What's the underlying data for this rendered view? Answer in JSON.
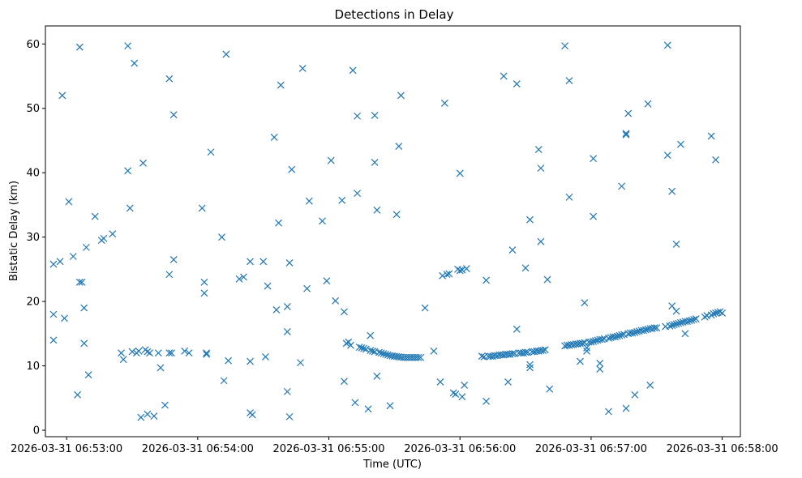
{
  "chart_data": {
    "type": "scatter",
    "title": "Detections in Delay",
    "xlabel": "Time (UTC)",
    "ylabel": "Bistatic Delay (km)",
    "marker": "x",
    "color": "#1f77b4",
    "x_unit": "seconds after 2026-03-31 06:53:00",
    "xlim": [
      -9.7,
      308.3
    ],
    "ylim": [
      -1.0,
      62.8
    ],
    "x_ticks": [
      {
        "value": 0,
        "label": "2026-03-31 06:53:00"
      },
      {
        "value": 60,
        "label": "2026-03-31 06:54:00"
      },
      {
        "value": 120,
        "label": "2026-03-31 06:55:00"
      },
      {
        "value": 180,
        "label": "2026-03-31 06:56:00"
      },
      {
        "value": 240,
        "label": "2026-03-31 06:57:00"
      },
      {
        "value": 300,
        "label": "2026-03-31 06:58:00"
      }
    ],
    "y_ticks": [
      0,
      10,
      20,
      30,
      40,
      50,
      60
    ],
    "points": [
      [
        -6,
        25.8
      ],
      [
        -6,
        18.0
      ],
      [
        -6,
        14.0
      ],
      [
        -3,
        26.2
      ],
      [
        -2,
        52.0
      ],
      [
        -1,
        17.4
      ],
      [
        1,
        35.5
      ],
      [
        3,
        27.0
      ],
      [
        5,
        5.5
      ],
      [
        6,
        23.0
      ],
      [
        6,
        59.5
      ],
      [
        7,
        23.0
      ],
      [
        8,
        19.0
      ],
      [
        8,
        13.5
      ],
      [
        9,
        28.4
      ],
      [
        10,
        8.6
      ],
      [
        13,
        33.2
      ],
      [
        16,
        29.5
      ],
      [
        17,
        29.8
      ],
      [
        21,
        30.5
      ],
      [
        25,
        12.0
      ],
      [
        26,
        11.0
      ],
      [
        28,
        59.7
      ],
      [
        28,
        40.3
      ],
      [
        29,
        34.5
      ],
      [
        30,
        12.2
      ],
      [
        31,
        57.0
      ],
      [
        32,
        12.0
      ],
      [
        33,
        12.3
      ],
      [
        34,
        2.0
      ],
      [
        35,
        41.5
      ],
      [
        36,
        12.5
      ],
      [
        37,
        2.5
      ],
      [
        37,
        12.2
      ],
      [
        38,
        12.0
      ],
      [
        40,
        2.2
      ],
      [
        42,
        12.0
      ],
      [
        43,
        9.7
      ],
      [
        45,
        3.9
      ],
      [
        47,
        12.0
      ],
      [
        47,
        24.2
      ],
      [
        47,
        54.6
      ],
      [
        48,
        12.0
      ],
      [
        49,
        26.5
      ],
      [
        49,
        49.0
      ],
      [
        54,
        12.3
      ],
      [
        56,
        12.0
      ],
      [
        62,
        34.5
      ],
      [
        63,
        23.0
      ],
      [
        63,
        21.3
      ],
      [
        64,
        12.0
      ],
      [
        64,
        11.8
      ],
      [
        66,
        43.2
      ],
      [
        71,
        30.0
      ],
      [
        72,
        7.7
      ],
      [
        73,
        58.4
      ],
      [
        74,
        10.8
      ],
      [
        79,
        23.5
      ],
      [
        81,
        23.8
      ],
      [
        84,
        26.2
      ],
      [
        84,
        10.7
      ],
      [
        84,
        2.7
      ],
      [
        85,
        2.4
      ],
      [
        90,
        26.2
      ],
      [
        91,
        11.4
      ],
      [
        92,
        22.4
      ],
      [
        95,
        45.5
      ],
      [
        96,
        18.7
      ],
      [
        97,
        32.2
      ],
      [
        98,
        53.6
      ],
      [
        101,
        19.2
      ],
      [
        101,
        15.3
      ],
      [
        101,
        6.0
      ],
      [
        102,
        2.1
      ],
      [
        102,
        26.0
      ],
      [
        103,
        40.5
      ],
      [
        107,
        10.5
      ],
      [
        108,
        56.2
      ],
      [
        110,
        22.0
      ],
      [
        111,
        35.6
      ],
      [
        117,
        32.5
      ],
      [
        119,
        23.2
      ],
      [
        121,
        41.9
      ],
      [
        123,
        20.1
      ],
      [
        126,
        35.7
      ],
      [
        127,
        18.4
      ],
      [
        127,
        7.6
      ],
      [
        128,
        13.5
      ],
      [
        129,
        13.7
      ],
      [
        130,
        13.2
      ],
      [
        131,
        55.9
      ],
      [
        132,
        4.3
      ],
      [
        133,
        48.8
      ],
      [
        133,
        36.8
      ],
      [
        134,
        12.9
      ],
      [
        135,
        12.8
      ],
      [
        136,
        12.7
      ],
      [
        137,
        12.6
      ],
      [
        138,
        3.3
      ],
      [
        139,
        12.4
      ],
      [
        139,
        14.7
      ],
      [
        140,
        12.3
      ],
      [
        141,
        48.9
      ],
      [
        141,
        41.6
      ],
      [
        141,
        12.2
      ],
      [
        142,
        34.2
      ],
      [
        142,
        8.4
      ],
      [
        143,
        12.1
      ],
      [
        144,
        12.0
      ],
      [
        145,
        11.9
      ],
      [
        146,
        11.8
      ],
      [
        147,
        11.7
      ],
      [
        148,
        11.6
      ],
      [
        148,
        3.8
      ],
      [
        149,
        11.55
      ],
      [
        150,
        11.5
      ],
      [
        151,
        11.45
      ],
      [
        151,
        33.5
      ],
      [
        152,
        44.1
      ],
      [
        152,
        11.4
      ],
      [
        153,
        11.35
      ],
      [
        153,
        52.0
      ],
      [
        154,
        11.3
      ],
      [
        155,
        11.3
      ],
      [
        156,
        11.3
      ],
      [
        157,
        11.3
      ],
      [
        158,
        11.3
      ],
      [
        159,
        11.3
      ],
      [
        160,
        11.3
      ],
      [
        161,
        11.3
      ],
      [
        162,
        11.3
      ],
      [
        164,
        19.0
      ],
      [
        168,
        12.3
      ],
      [
        171,
        7.5
      ],
      [
        172,
        24.0
      ],
      [
        173,
        50.8
      ],
      [
        174,
        24.2
      ],
      [
        175,
        24.3
      ],
      [
        177,
        5.8
      ],
      [
        178,
        5.6
      ],
      [
        179,
        25.0
      ],
      [
        180,
        39.9
      ],
      [
        180,
        24.8
      ],
      [
        181,
        5.2
      ],
      [
        181,
        24.9
      ],
      [
        182,
        7.0
      ],
      [
        183,
        25.1
      ],
      [
        190,
        11.5
      ],
      [
        191,
        11.4
      ],
      [
        192,
        4.5
      ],
      [
        192,
        23.3
      ],
      [
        193,
        11.5
      ],
      [
        194,
        11.5
      ],
      [
        195,
        11.5
      ],
      [
        196,
        11.6
      ],
      [
        197,
        11.6
      ],
      [
        198,
        11.7
      ],
      [
        199,
        11.7
      ],
      [
        200,
        55.0
      ],
      [
        200,
        11.7
      ],
      [
        201,
        11.8
      ],
      [
        202,
        7.5
      ],
      [
        202,
        11.8
      ],
      [
        203,
        11.8
      ],
      [
        204,
        28.0
      ],
      [
        204,
        11.9
      ],
      [
        205,
        11.9
      ],
      [
        206,
        15.7
      ],
      [
        206,
        53.8
      ],
      [
        207,
        12.0
      ],
      [
        208,
        12.0
      ],
      [
        209,
        12.0
      ],
      [
        210,
        25.2
      ],
      [
        210,
        12.1
      ],
      [
        211,
        12.1
      ],
      [
        212,
        32.7
      ],
      [
        212,
        10.2
      ],
      [
        212,
        9.7
      ],
      [
        213,
        12.2
      ],
      [
        214,
        12.2
      ],
      [
        215,
        12.3
      ],
      [
        216,
        43.6
      ],
      [
        216,
        12.3
      ],
      [
        217,
        29.3
      ],
      [
        217,
        40.7
      ],
      [
        217,
        12.4
      ],
      [
        218,
        12.4
      ],
      [
        219,
        12.5
      ],
      [
        220,
        23.4
      ],
      [
        221,
        6.4
      ],
      [
        228,
        13.1
      ],
      [
        228,
        59.7
      ],
      [
        229,
        13.2
      ],
      [
        230,
        54.3
      ],
      [
        230,
        36.2
      ],
      [
        230,
        13.2
      ],
      [
        231,
        13.3
      ],
      [
        232,
        13.3
      ],
      [
        233,
        13.4
      ],
      [
        234,
        13.4
      ],
      [
        235,
        10.7
      ],
      [
        235,
        13.5
      ],
      [
        236,
        13.5
      ],
      [
        237,
        19.8
      ],
      [
        237,
        13.6
      ],
      [
        238,
        12.8
      ],
      [
        238,
        12.3
      ],
      [
        239,
        13.7
      ],
      [
        240,
        13.7
      ],
      [
        241,
        42.2
      ],
      [
        241,
        33.2
      ],
      [
        241,
        13.8
      ],
      [
        242,
        13.9
      ],
      [
        243,
        14.0
      ],
      [
        244,
        9.5
      ],
      [
        244,
        10.4
      ],
      [
        244,
        14.1
      ],
      [
        245,
        14.1
      ],
      [
        246,
        14.2
      ],
      [
        248,
        2.9
      ],
      [
        248,
        14.3
      ],
      [
        249,
        14.4
      ],
      [
        250,
        14.5
      ],
      [
        251,
        14.5
      ],
      [
        252,
        14.6
      ],
      [
        253,
        14.7
      ],
      [
        254,
        37.9
      ],
      [
        254,
        14.8
      ],
      [
        255,
        14.9
      ],
      [
        256,
        3.4
      ],
      [
        256,
        45.9
      ],
      [
        256,
        46.1
      ],
      [
        257,
        15.0
      ],
      [
        257,
        49.2
      ],
      [
        258,
        15.1
      ],
      [
        259,
        15.1
      ],
      [
        260,
        5.5
      ],
      [
        260,
        15.2
      ],
      [
        261,
        15.3
      ],
      [
        262,
        15.4
      ],
      [
        263,
        15.5
      ],
      [
        264,
        15.5
      ],
      [
        265,
        15.6
      ],
      [
        266,
        50.7
      ],
      [
        266,
        15.7
      ],
      [
        267,
        7.0
      ],
      [
        267,
        15.8
      ],
      [
        268,
        15.8
      ],
      [
        269,
        15.9
      ],
      [
        270,
        15.9
      ],
      [
        274,
        16.1
      ],
      [
        275,
        42.7
      ],
      [
        275,
        59.8
      ],
      [
        276,
        16.2
      ],
      [
        277,
        19.3
      ],
      [
        277,
        37.1
      ],
      [
        277,
        16.3
      ],
      [
        278,
        16.4
      ],
      [
        279,
        18.5
      ],
      [
        279,
        28.9
      ],
      [
        279,
        16.5
      ],
      [
        280,
        16.6
      ],
      [
        281,
        44.4
      ],
      [
        281,
        16.7
      ],
      [
        282,
        16.8
      ],
      [
        283,
        15.0
      ],
      [
        283,
        16.9
      ],
      [
        284,
        16.9
      ],
      [
        285,
        17.0
      ],
      [
        286,
        17.1
      ],
      [
        287,
        17.2
      ],
      [
        288,
        17.3
      ],
      [
        292,
        17.6
      ],
      [
        293,
        17.8
      ],
      [
        295,
        45.7
      ],
      [
        295,
        17.9
      ],
      [
        296,
        18.1
      ],
      [
        297,
        42.0
      ],
      [
        297,
        18.2
      ],
      [
        298,
        18.3
      ],
      [
        299,
        18.4
      ],
      [
        300,
        18.2
      ]
    ]
  }
}
